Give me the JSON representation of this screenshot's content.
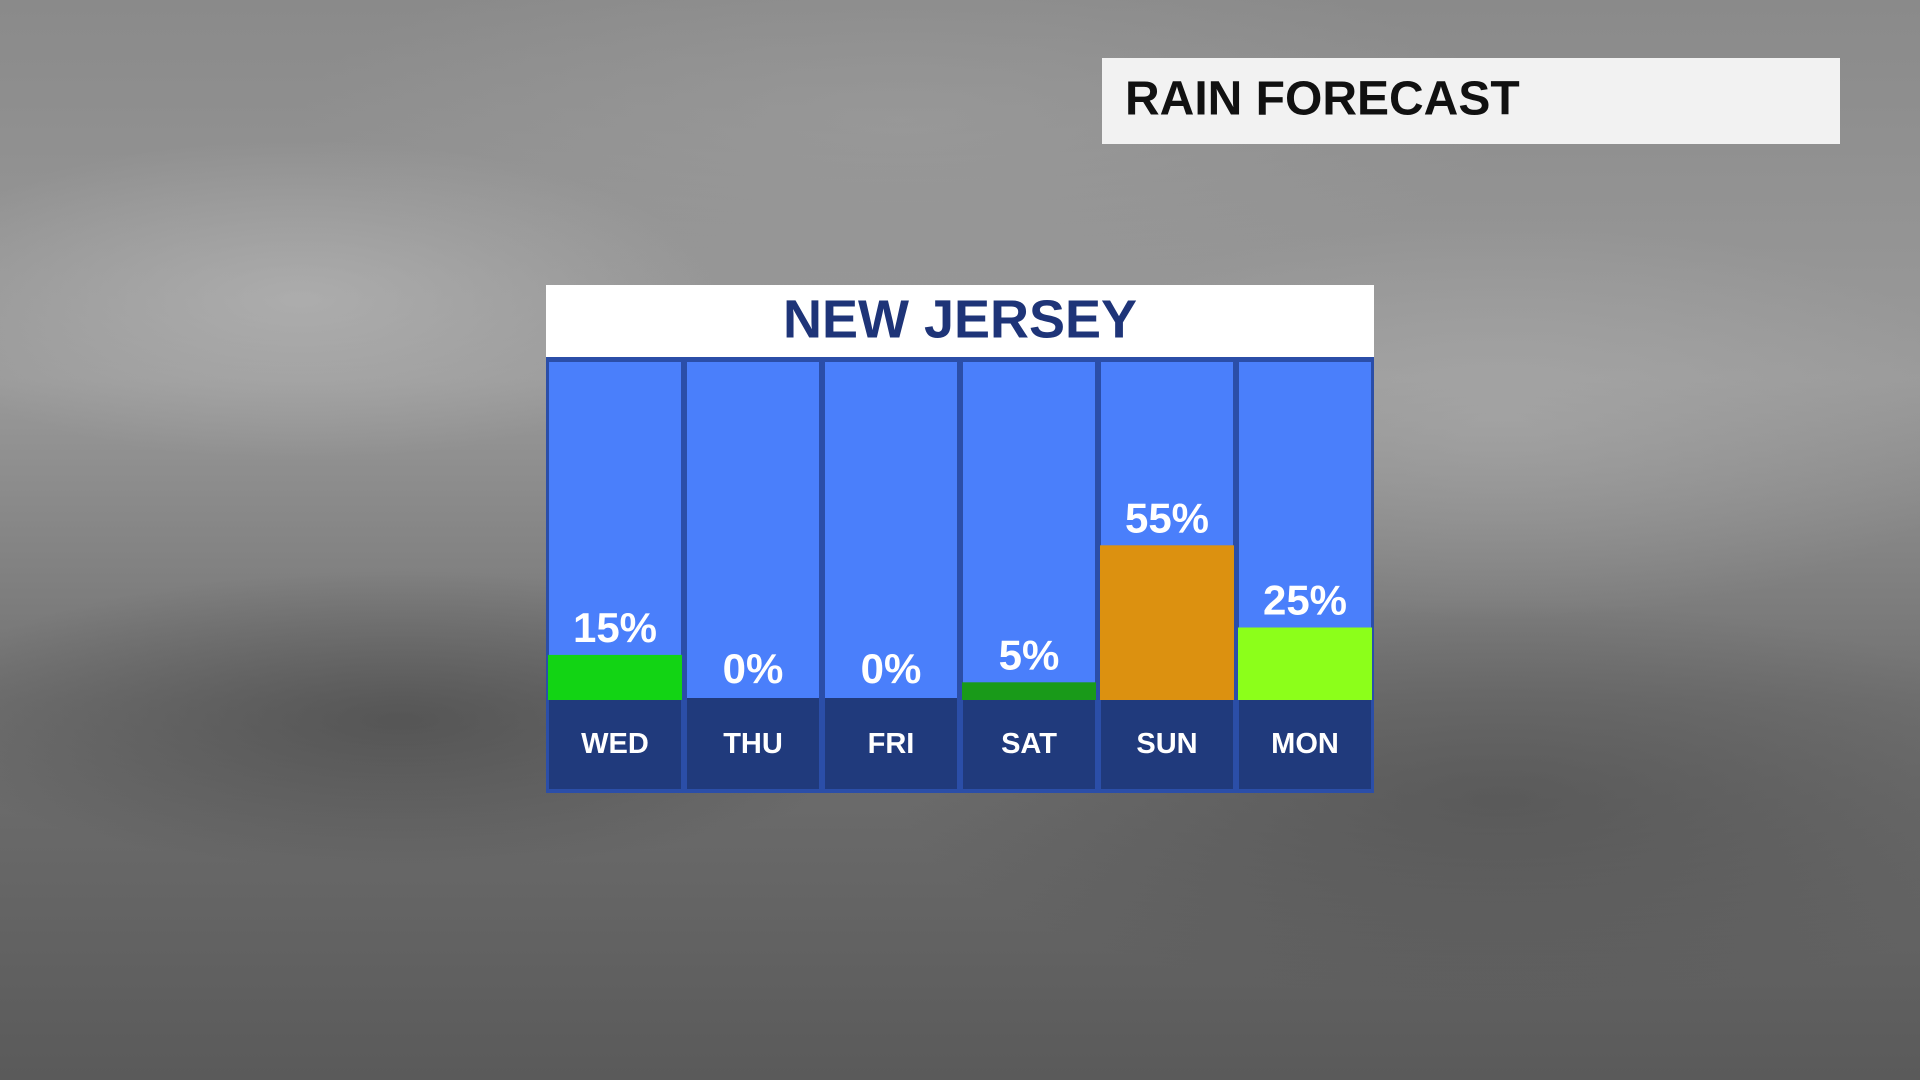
{
  "header": {
    "title": "RAIN FORECAST"
  },
  "chart_data": {
    "type": "bar",
    "title": "NEW JERSEY",
    "categories": [
      "WED",
      "THU",
      "FRI",
      "SAT",
      "SUN",
      "MON"
    ],
    "values": [
      15,
      0,
      0,
      5,
      55,
      25
    ],
    "value_labels": [
      "15%",
      "0%",
      "0%",
      "5%",
      "55%",
      "25%"
    ],
    "colors": [
      "#12d414",
      "#ffffff",
      "#ffffff",
      "#199a19",
      "#dc9110",
      "#8cff1a"
    ],
    "ylim": [
      0,
      100
    ]
  }
}
